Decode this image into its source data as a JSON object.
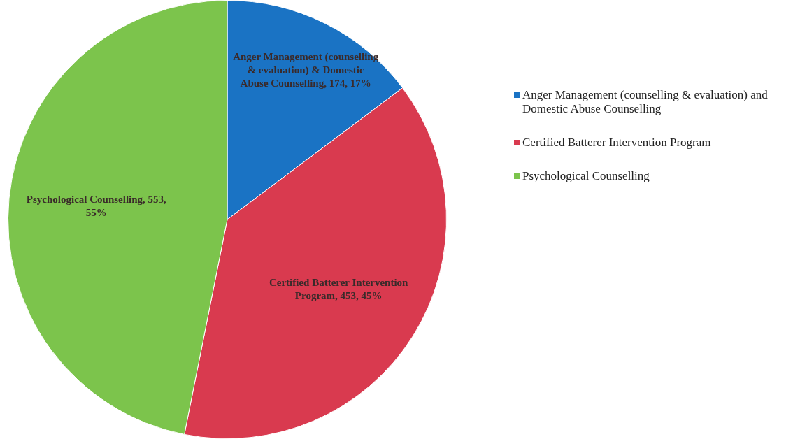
{
  "chart_data": {
    "type": "pie",
    "categories": [
      "Anger Management (counselling & evaluation) and Domestic Abuse Counselling",
      "Certified Batterer Intervention Program",
      "Psychological Counselling"
    ],
    "values": [
      174,
      453,
      553
    ],
    "colors": [
      "#1a73c4",
      "#d93a4f",
      "#7cc44c"
    ],
    "value_labels": [
      "Anger Management (counselling & evaluation) & Domestic Abuse Counselling, 174, 17%",
      "Certified Batterer Intervention Program, 453, 45%",
      "Psychological Counselling, 553, 55%"
    ],
    "legend": "right"
  }
}
